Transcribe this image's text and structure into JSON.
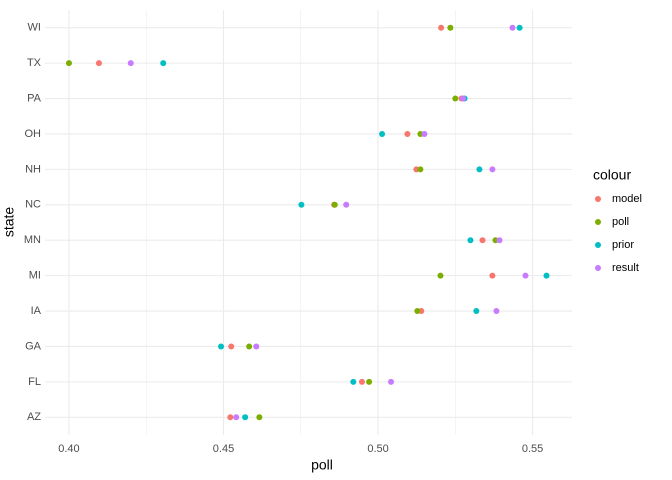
{
  "chart_data": {
    "type": "dot",
    "x_label": "poll",
    "y_label": "state",
    "legend_title": "colour",
    "categories": [
      "AZ",
      "FL",
      "GA",
      "IA",
      "MI",
      "MN",
      "NC",
      "NH",
      "OH",
      "PA",
      "TX",
      "WI"
    ],
    "series": [
      {
        "name": "model",
        "color": "#F8766D",
        "values": [
          0.4522,
          0.4948,
          0.4525,
          0.514,
          0.537,
          0.5338,
          0.4858,
          0.5124,
          0.5095,
          0.527,
          0.4097,
          0.5204
        ]
      },
      {
        "name": "poll",
        "color": "#7CAE00",
        "values": [
          0.4616,
          0.4971,
          0.4583,
          0.5127,
          0.5202,
          0.538,
          0.486,
          0.5137,
          0.5137,
          0.525,
          0.4,
          0.5234
        ]
      },
      {
        "name": "prior",
        "color": "#00BFC4",
        "values": [
          0.457,
          0.492,
          0.4492,
          0.5318,
          0.5545,
          0.5299,
          0.4752,
          0.5328,
          0.5013,
          0.528,
          0.4305,
          0.5458
        ]
      },
      {
        "name": "result",
        "color": "#C77CFF",
        "values": [
          0.4541,
          0.5042,
          0.4606,
          0.5383,
          0.5477,
          0.5393,
          0.4897,
          0.537,
          0.515,
          0.5275,
          0.42,
          0.5435
        ]
      }
    ],
    "xlim": [
      0.39225,
      0.56275
    ],
    "xticks": [
      {
        "value": 0.4,
        "label": "0.40"
      },
      0.45,
      {
        "value": 0.5,
        "label": "0.50"
      },
      0.55
    ],
    "grid": true,
    "legend_position": "right"
  }
}
